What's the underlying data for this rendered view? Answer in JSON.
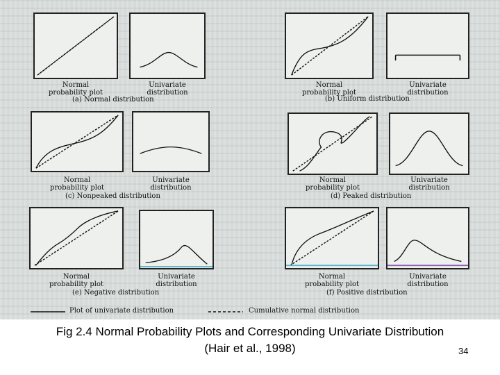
{
  "figure": {
    "rows": [
      {
        "subtitle": "(a) Normal distribution",
        "subtitle_b": "(b) Uniform distribution",
        "npp_label": "Normal\nprobability plot",
        "uni_label": "Univariate\ndistribution"
      }
    ],
    "labels": {
      "npp_line1": "Normal",
      "npp_line2": "probability plot",
      "uni_line1": "Univariate",
      "uni_line2": "distribution"
    },
    "subtitles": {
      "a": "(a) Normal distribution",
      "b": "(b) Uniform distribution",
      "c": "(c) Nonpeaked distribution",
      "d": "(d) Peaked distribution",
      "e": "(e) Negative distribution",
      "f": "(f) Positive distribution"
    },
    "legend": {
      "solid": "Plot of univariate distribution",
      "dashed": "Cumulative normal distribution"
    }
  },
  "caption": {
    "line1": "Fig 2.4  Normal Probability Plots and Corresponding Univariate Distribution",
    "line2": "(Hair et al., 1998)"
  },
  "page_number": "34"
}
